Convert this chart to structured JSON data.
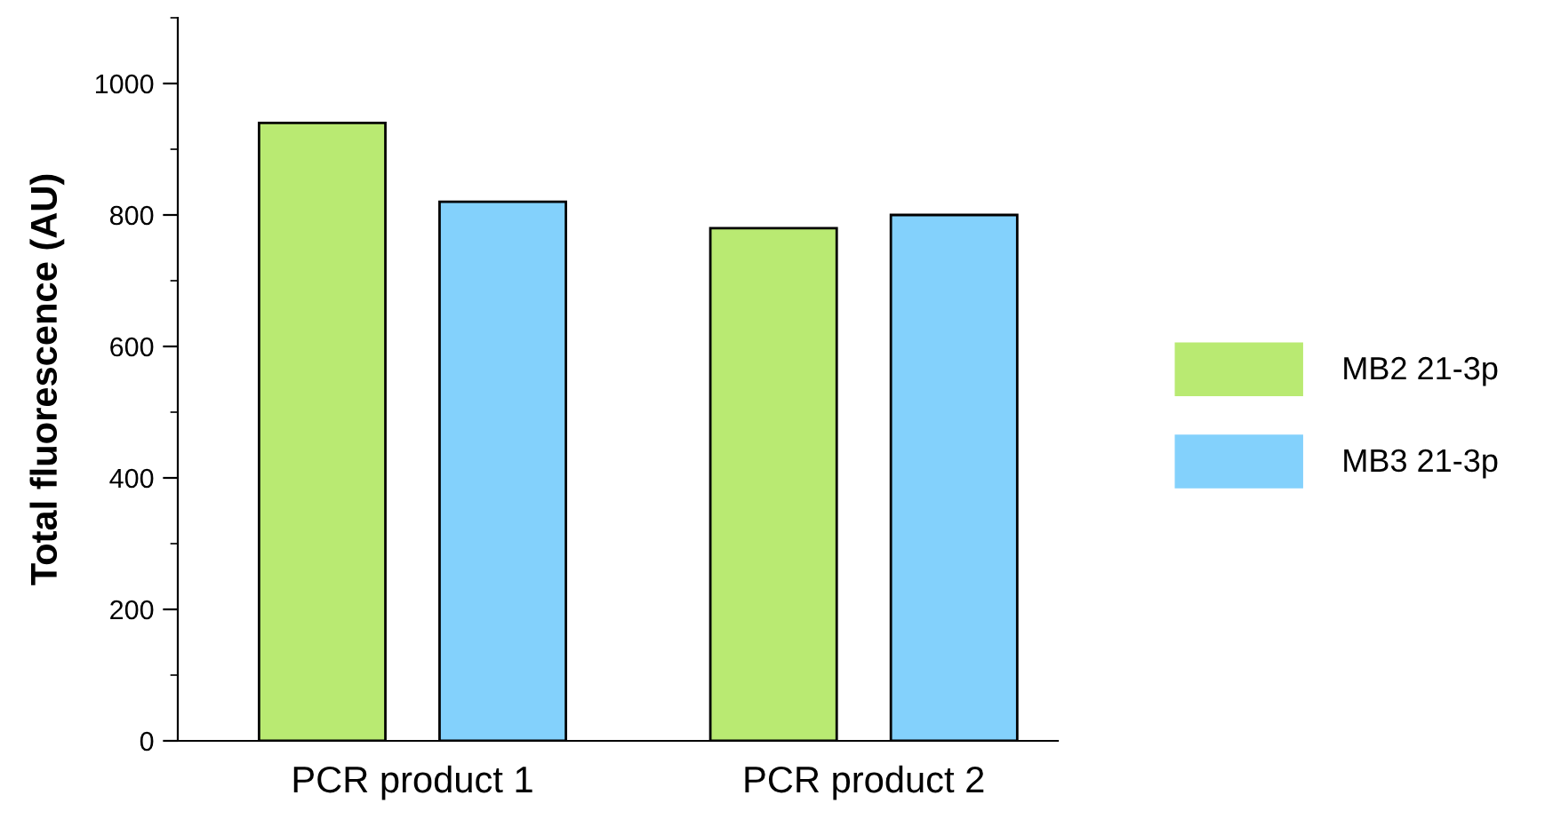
{
  "chart_data": {
    "type": "bar",
    "ylabel": "Total fluorescence (AU)",
    "categories": [
      "PCR product 1",
      "PCR product 2"
    ],
    "series": [
      {
        "name": "MB2 21-3p",
        "color": "#b9ea72",
        "values": [
          940,
          780
        ]
      },
      {
        "name": "MB3 21-3p",
        "color": "#83d1fc",
        "values": [
          820,
          800
        ]
      }
    ],
    "ylim": [
      0,
      1100
    ],
    "yticks": [
      0,
      200,
      400,
      600,
      800,
      1000
    ],
    "grid": false,
    "legend": "right"
  }
}
